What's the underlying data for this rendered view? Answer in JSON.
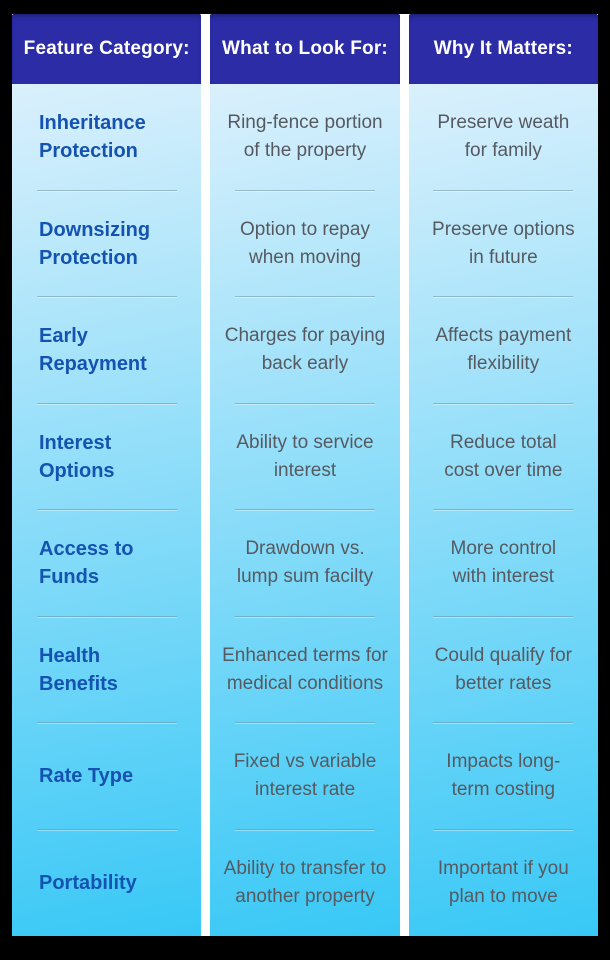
{
  "table": {
    "headers": [
      {
        "label": "Feature Category:"
      },
      {
        "label": "What to Look For:"
      },
      {
        "label": "Why It Matters:"
      }
    ],
    "rows": [
      {
        "category": "Inheritance\nProtection",
        "look_for": "Ring-fence portion\nof the property",
        "why_matters": "Preserve weath\nfor family"
      },
      {
        "category": "Downsizing\nProtection",
        "look_for": "Option to repay\nwhen moving",
        "why_matters": "Preserve options\nin future"
      },
      {
        "category": "Early\nRepayment",
        "look_for": "Charges for paying\nback early",
        "why_matters": "Affects payment\nflexibility"
      },
      {
        "category": "Interest\nOptions",
        "look_for": "Ability to service\ninterest",
        "why_matters": "Reduce total\ncost over time"
      },
      {
        "category": "Access to\nFunds",
        "look_for": "Drawdown vs.\nlump sum facilty",
        "why_matters": "More control\nwith interest"
      },
      {
        "category": "Health\nBenefits",
        "look_for": "Enhanced terms for\nmedical conditions",
        "why_matters": "Could qualify for\nbetter rates"
      },
      {
        "category": "Rate Type",
        "look_for": "Fixed vs variable\ninterest rate",
        "why_matters": "Impacts long-\nterm costing"
      },
      {
        "category": "Portability",
        "look_for": "Ability to transfer to\nanother property",
        "why_matters": "Important if you\nplan to move"
      }
    ]
  },
  "colors": {
    "header_bg": "#2b2ca6",
    "category_text": "#1553b0",
    "body_text": "#565a60",
    "gradient_top": "#daf0fc",
    "gradient_bottom": "#38c8f6",
    "column_gap": "#ffffff",
    "frame": "#000000"
  },
  "chart_data": {
    "type": "table",
    "title": "",
    "columns": [
      "Feature Category:",
      "What to Look For:",
      "Why It Matters:"
    ],
    "rows": [
      [
        "Inheritance Protection",
        "Ring-fence portion of the property",
        "Preserve weath for family"
      ],
      [
        "Downsizing Protection",
        "Option to repay when moving",
        "Preserve options in future"
      ],
      [
        "Early Repayment",
        "Charges for paying back early",
        "Affects payment flexibility"
      ],
      [
        "Interest Options",
        "Ability to service interest",
        "Reduce total cost over time"
      ],
      [
        "Access to Funds",
        "Drawdown vs. lump sum facilty",
        "More control with interest"
      ],
      [
        "Health Benefits",
        "Enhanced terms for medical conditions",
        "Could qualify for better rates"
      ],
      [
        "Rate Type",
        "Fixed vs variable interest rate",
        "Impacts long-term costing"
      ],
      [
        "Portability",
        "Ability to transfer to another property",
        "Important if you plan to move"
      ]
    ]
  }
}
